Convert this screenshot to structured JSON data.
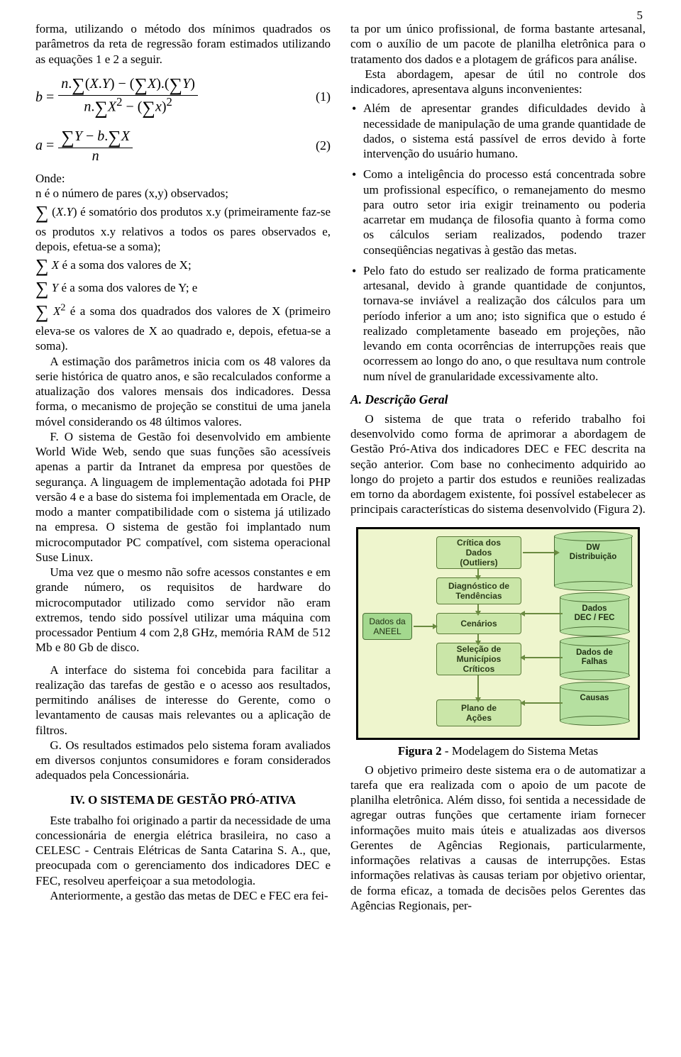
{
  "page_number": "5",
  "left": {
    "p1": "forma, utilizando o método dos mínimos quadrados os parâmetros da reta de regressão foram estimados utilizando as equações 1 e 2 a seguir.",
    "eq1_label": "(1)",
    "eq2_label": "(2)",
    "onde": "Onde:",
    "onde1": "n é o número de pares (x,y) observados;",
    "onde2a": "Σ (X.Y) é",
    "onde2b": " somatório dos produtos x.y (primeiramente faz-se os produtos x.y relativos a todos os pares observados e, depois, efetua-se a soma);",
    "onde3": "Σ X é a soma dos valores de X;",
    "onde4": "Σ Y é a soma dos valores de Y; e",
    "onde5": "Σ X² é a soma dos quadrados dos valores de X (primeiro eleva-se os valores de X ao quadrado e, depois, efetua-se a soma).",
    "p2": "A estimação dos parâmetros inicia com os 48 valores da serie histórica de quatro anos, e são recalculados conforme a atualização dos valores mensais dos indicadores. Dessa forma, o mecanismo de projeção se constitui de uma janela móvel considerando os 48 últimos valores.",
    "p3": "F. O sistema de Gestão foi desenvolvido em ambiente World Wide Web, sendo que suas funções são acessíveis apenas a partir da Intranet da empresa por questões de segurança. A linguagem de implementação adotada foi PHP versão 4 e a base do sistema foi implementada em Oracle, de modo a manter compatibilidade com o sistema já utilizado na empresa. O sistema de gestão foi implantado num microcomputador PC compatível, com sistema operacional Suse Linux.",
    "p4": "Uma vez que o mesmo não sofre acessos constantes e em grande número, os requisitos de hardware do microcomputador utilizado como servidor não eram extremos, tendo sido possível utilizar uma máquina com processador Pentium 4 com 2,8 GHz, memória RAM de 512 Mb e 80 Gb de disco.",
    "p5": "A interface do sistema foi concebida para facilitar a realização das tarefas de gestão e o acesso aos resultados, permitindo análises de interesse do Gerente, como o levantamento de causas mais relevantes ou a aplicação de filtros.",
    "p6": "G. Os resultados estimados pelo sistema foram avaliados em diversos conjuntos consumidores e foram considerados adequados pela Concessionária.",
    "section": "IV. O SISTEMA DE GESTÃO PRÓ-ATIVA",
    "p7": "Este trabalho foi originado a partir da necessidade de uma concessionária de energia elétrica brasileira, no caso a CELESC - Centrais Elétricas de Santa Catarina S. A., que, preocupada com o gerenciamento dos indicadores DEC e FEC, resolveu aperfeiçoar a sua metodologia.",
    "p8": "Anteriormente, a gestão das metas de DEC e FEC era fei-"
  },
  "right": {
    "p1": "ta por um único profissional, de forma bastante artesanal, com o auxílio de um pacote de planilha eletrônica para o tratamento dos dados e a plotagem de gráficos para análise.",
    "p2": "Esta abordagem, apesar de útil no controle dos indicadores, apresentava alguns inconvenientes:",
    "b1": "Além de apresentar grandes dificuldades devido à necessidade de manipulação de uma grande quantidade de dados, o sistema está passível de erros devido à forte intervenção do usuário humano.",
    "b2": "Como a inteligência do processo está concentrada sobre um profissional específico, o remanejamento do mesmo para outro setor iria exigir treinamento ou poderia acarretar em mudança de filosofia quanto à forma como os cálculos seriam realizados, podendo trazer conseqüências negativas à gestão das metas.",
    "b3": "Pelo fato do estudo ser realizado de forma praticamente artesanal, devido à grande quantidade de conjuntos, tornava-se inviável a realização dos cálculos para um período inferior a um ano; isto significa que o estudo é realizado completamente baseado em projeções, não levando em conta ocorrências de interrupções reais que ocorressem ao longo do ano, o que resultava num controle num nível de granularidade excessivamente alto.",
    "subsection": "A. Descrição Geral",
    "p3": "O sistema de que trata o referido trabalho foi desenvolvido como forma de aprimorar a abordagem de Gestão Pró-Ativa dos indicadores DEC e FEC descrita na seção anterior. Com base no conhecimento adquirido ao longo do projeto a partir dos estudos e reuniões realizadas em torno da abordagem existente, foi possível estabelecer as principais características do sistema desenvolvido (Figura 2).",
    "fig_caption_bold": "Figura 2",
    "fig_caption_rest": " - Modelagem do Sistema Metas",
    "p4": "O objetivo primeiro deste sistema era o de automatizar a tarefa que era realizada com o apoio de um pacote de planilha eletrônica. Além disso, foi sentida a necessidade de agregar outras funções que certamente iriam fornecer informações muito mais úteis e atualizadas aos diversos Gerentes de Agências Regionais, particularmente, informações relativas a causas de interrupções. Estas informações relativas às causas teriam por objetivo orientar, de forma eficaz, a tomada de decisões pelos Gerentes das Agências Regionais, per-"
  },
  "flow": {
    "background": "#eef5cd",
    "process_bg": "#cae6a8",
    "data_bg": "#a3d88e",
    "db_bg": "#b5e0a0",
    "nodes": {
      "aneel": "Dados da\nANEEL",
      "critica": "Crítica dos\nDados\n(Outliers)",
      "diag": "Diagnóstico de\nTendências",
      "cenarios": "Cenários",
      "selecao": "Seleção de\nMunicípios\nCríticos",
      "plano": "Plano de\nAções",
      "dw": "DW\nDistribuição",
      "decfec": "Dados\nDEC / FEC",
      "falhas": "Dados de\nFalhas",
      "causas": "Causas"
    }
  }
}
